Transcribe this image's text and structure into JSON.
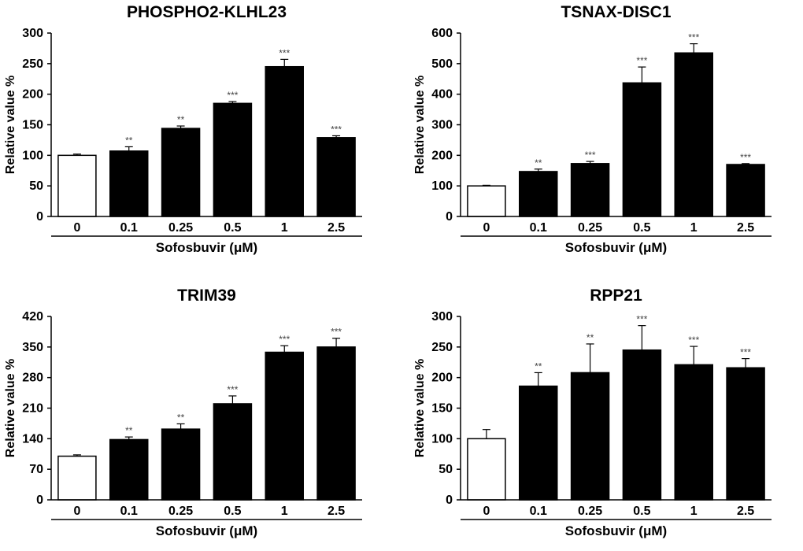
{
  "chart_data": [
    {
      "type": "bar",
      "title": "PHOSPHO2-KLHL23",
      "ylabel": "Relative value %",
      "xlabel": "Sofosbuvir (μM)",
      "categories": [
        "0",
        "0.1",
        "0.25",
        "0.5",
        "1",
        "2.5"
      ],
      "values": [
        100,
        107,
        144,
        185,
        245,
        129
      ],
      "errors": [
        2,
        7,
        4,
        3,
        12,
        3
      ],
      "significance": [
        "",
        "**",
        "**",
        "***",
        "***",
        "***"
      ],
      "ylim": [
        0,
        300
      ],
      "yticks": [
        "0",
        "50",
        "100",
        "150",
        "200",
        "250",
        "300"
      ],
      "fill_colors": [
        "#ffffff",
        "#000000",
        "#000000",
        "#000000",
        "#000000",
        "#000000"
      ]
    },
    {
      "type": "bar",
      "title": "TSNAX-DISC1",
      "ylabel": "Relative value %",
      "xlabel": "Sofosbuvir (μM)",
      "categories": [
        "0",
        "0.1",
        "0.25",
        "0.5",
        "1",
        "2.5"
      ],
      "values": [
        100,
        147,
        173,
        437,
        535,
        170
      ],
      "errors": [
        2,
        8,
        7,
        52,
        30,
        3
      ],
      "significance": [
        "",
        "**",
        "***",
        "***",
        "***",
        "***"
      ],
      "ylim": [
        0,
        600
      ],
      "yticks": [
        "0",
        "100",
        "200",
        "300",
        "400",
        "500",
        "600"
      ],
      "fill_colors": [
        "#ffffff",
        "#000000",
        "#000000",
        "#000000",
        "#000000",
        "#000000"
      ]
    },
    {
      "type": "bar",
      "title": "TRIM39",
      "ylabel": "Relative value %",
      "xlabel": "Sofosbuvir (μM)",
      "categories": [
        "0",
        "0.1",
        "0.25",
        "0.5",
        "1",
        "2.5"
      ],
      "values": [
        100,
        138,
        162,
        220,
        338,
        350
      ],
      "errors": [
        3,
        6,
        12,
        18,
        15,
        20
      ],
      "significance": [
        "",
        "**",
        "**",
        "***",
        "***",
        "***"
      ],
      "ylim": [
        0,
        420
      ],
      "yticks": [
        "0",
        "70",
        "140",
        "210",
        "280",
        "350",
        "420"
      ],
      "fill_colors": [
        "#ffffff",
        "#000000",
        "#000000",
        "#000000",
        "#000000",
        "#000000"
      ]
    },
    {
      "type": "bar",
      "title": "RPP21",
      "ylabel": "Relative value %",
      "xlabel": "Sofosbuvir (μM)",
      "categories": [
        "0",
        "0.1",
        "0.25",
        "0.5",
        "1",
        "2.5"
      ],
      "values": [
        100,
        186,
        208,
        245,
        221,
        216
      ],
      "errors": [
        15,
        22,
        47,
        40,
        30,
        15
      ],
      "significance": [
        "",
        "**",
        "**",
        "***",
        "***",
        "***"
      ],
      "ylim": [
        0,
        300
      ],
      "yticks": [
        "0",
        "50",
        "100",
        "150",
        "200",
        "250",
        "300"
      ],
      "fill_colors": [
        "#ffffff",
        "#000000",
        "#000000",
        "#000000",
        "#000000",
        "#000000"
      ]
    }
  ]
}
